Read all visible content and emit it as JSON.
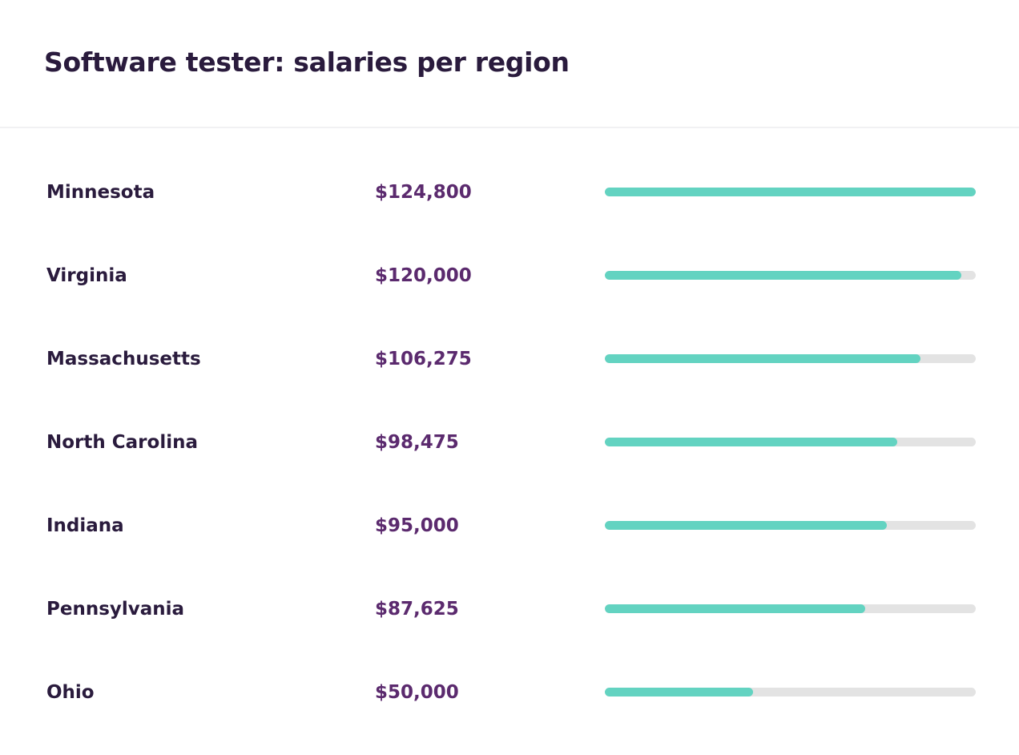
{
  "header": {
    "title": "Software tester: salaries per region"
  },
  "colors": {
    "title": "#2a1b3d",
    "salary": "#5b2a6e",
    "bar_fill": "#63d3c1",
    "bar_track": "#e3e3e3",
    "divider": "#f1f1f3"
  },
  "chart_data": {
    "type": "bar",
    "orientation": "horizontal",
    "categories": [
      "Minnesota",
      "Virginia",
      "Massachusetts",
      "North Carolina",
      "Indiana",
      "Pennsylvania",
      "Ohio"
    ],
    "values": [
      124800,
      120000,
      106275,
      98475,
      95000,
      87625,
      50000
    ],
    "value_labels": [
      "$124,800",
      "$120,000",
      "$106,275",
      "$98,475",
      "$95,000",
      "$87,625",
      "$50,000"
    ],
    "xlim": [
      0,
      124800
    ],
    "grid": false,
    "legend": "none"
  }
}
